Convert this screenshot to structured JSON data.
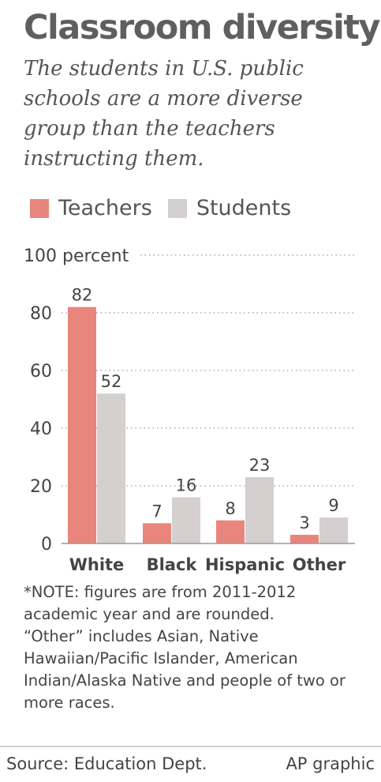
{
  "title": "Classroom diversity",
  "subtitle": "The students in U.S. public schools are a more diverse group than the teachers instructing them.",
  "legend": [
    {
      "label": "Teachers",
      "color": "#e8857d"
    },
    {
      "label": "Students",
      "color": "#d3d0cf"
    }
  ],
  "chart_data": {
    "type": "bar",
    "categories": [
      "White",
      "Black",
      "Hispanic",
      "Other"
    ],
    "series": [
      {
        "name": "Teachers",
        "values": [
          82,
          7,
          8,
          3
        ],
        "color": "#e8857d"
      },
      {
        "name": "Students",
        "values": [
          52,
          16,
          23,
          9
        ],
        "color": "#d3d0cf"
      }
    ],
    "yticks": [
      0,
      20,
      40,
      60,
      80,
      100
    ],
    "ytick_labels": [
      "0",
      "20",
      "40",
      "60",
      "80",
      "100 percent"
    ],
    "ylim": [
      0,
      100
    ],
    "grid": true,
    "legend_position": "top-left"
  },
  "note": "*NOTE: figures are from 2011-2012 academic year and are rounded.\n“Other” includes Asian, Native Hawaiian/Pacific Islander, American Indian/Alaska Native and people of two or more races.",
  "footer": {
    "source": "Source: Education Dept.",
    "credit": "AP graphic"
  }
}
